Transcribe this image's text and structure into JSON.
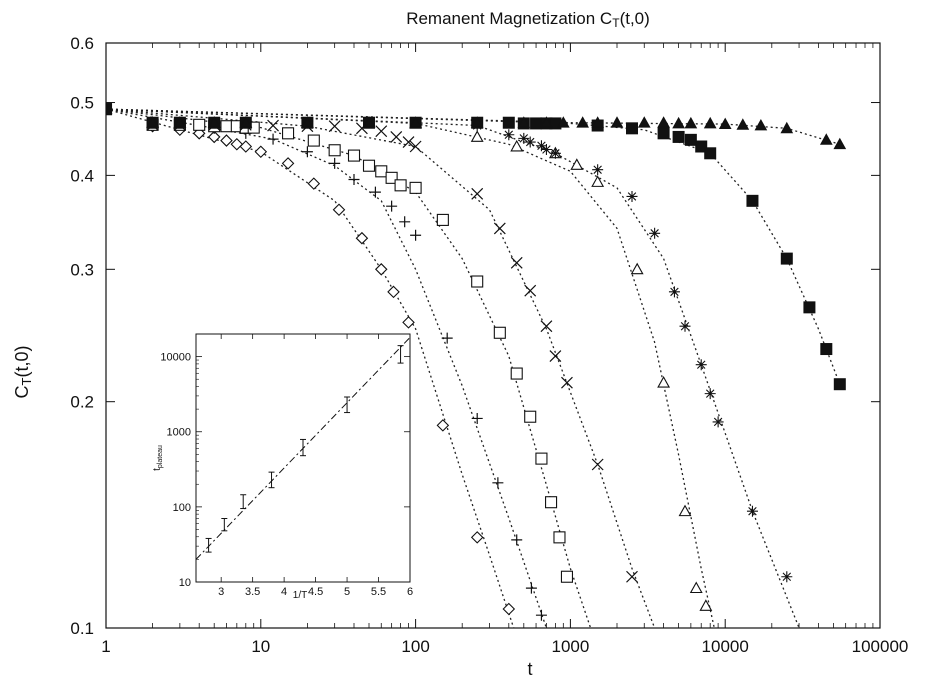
{
  "chart_data": [
    {
      "type": "scatter",
      "title": "Remanent Magnetization C",
      "title_sub": "T",
      "title_suffix": "(t,0)",
      "xlabel": "t",
      "ylabel": "C",
      "ylabel_sub": "T",
      "ylabel_suffix": "(t,0)",
      "xscale": "log",
      "yscale": "log",
      "xlim": [
        1,
        100000
      ],
      "ylim": [
        0.1,
        0.6
      ],
      "xticks": [
        1,
        10,
        100,
        1000,
        10000,
        100000
      ],
      "xtick_labels": [
        "1",
        "10",
        "100",
        "1000",
        "10000",
        "100000"
      ],
      "yticks": [
        0.1,
        0.2,
        0.3,
        0.4,
        0.5,
        0.6
      ],
      "ytick_labels": [
        "0.1",
        "0.2",
        "0.3",
        "0.4",
        "0.5",
        "0.6"
      ],
      "grid": false,
      "legend": "none",
      "line_style": "dotted",
      "series": [
        {
          "marker": "diamond",
          "x": [
            1,
            2,
            3,
            4,
            5,
            6,
            7,
            8,
            10,
            15,
            22,
            32,
            45,
            60,
            72,
            90,
            150,
            250,
            400
          ],
          "y": [
            0.49,
            0.465,
            0.46,
            0.455,
            0.45,
            0.445,
            0.44,
            0.437,
            0.43,
            0.415,
            0.39,
            0.36,
            0.33,
            0.3,
            0.28,
            0.255,
            0.186,
            0.132,
            0.106
          ],
          "curve_x": [
            1,
            3,
            10,
            30,
            60,
            100,
            200,
            300,
            430
          ],
          "curve_y": [
            0.49,
            0.46,
            0.43,
            0.37,
            0.3,
            0.25,
            0.16,
            0.125,
            0.1
          ]
        },
        {
          "marker": "plus",
          "x": [
            1,
            2,
            3,
            5,
            8,
            12,
            20,
            30,
            40,
            55,
            70,
            85,
            100,
            160,
            250,
            340,
            450,
            560,
            650
          ],
          "y": [
            0.49,
            0.47,
            0.47,
            0.462,
            0.455,
            0.447,
            0.43,
            0.415,
            0.395,
            0.38,
            0.364,
            0.347,
            0.333,
            0.243,
            0.19,
            0.156,
            0.131,
            0.113,
            0.104
          ],
          "curve_x": [
            1,
            5,
            12,
            30,
            60,
            100,
            200,
            400,
            700
          ],
          "curve_y": [
            0.49,
            0.462,
            0.447,
            0.412,
            0.37,
            0.3,
            0.21,
            0.14,
            0.1
          ]
        },
        {
          "marker": "square",
          "x": [
            1,
            2,
            3,
            4,
            5,
            6,
            7,
            8,
            9,
            15,
            22,
            30,
            40,
            50,
            60,
            70,
            80,
            100,
            150,
            250,
            350,
            450,
            550,
            650,
            750,
            850,
            950
          ],
          "y": [
            0.49,
            0.467,
            0.467,
            0.467,
            0.465,
            0.465,
            0.465,
            0.463,
            0.463,
            0.455,
            0.445,
            0.432,
            0.425,
            0.412,
            0.405,
            0.397,
            0.388,
            0.385,
            0.349,
            0.289,
            0.247,
            0.218,
            0.191,
            0.168,
            0.147,
            0.132,
            0.117
          ],
          "curve_x": [
            1,
            10,
            40,
            100,
            200,
            400,
            700,
            1000,
            1350
          ],
          "curve_y": [
            0.49,
            0.463,
            0.425,
            0.38,
            0.31,
            0.23,
            0.155,
            0.12,
            0.1
          ]
        },
        {
          "marker": "cross",
          "x": [
            1,
            2,
            3,
            5,
            8,
            12,
            20,
            30,
            45,
            60,
            75,
            90,
            100,
            250,
            350,
            450,
            550,
            700,
            800,
            950,
            1500,
            2500
          ],
          "y": [
            0.49,
            0.467,
            0.467,
            0.467,
            0.467,
            0.466,
            0.465,
            0.465,
            0.462,
            0.458,
            0.45,
            0.443,
            0.437,
            0.378,
            0.34,
            0.306,
            0.281,
            0.252,
            0.23,
            0.212,
            0.165,
            0.117
          ],
          "curve_x": [
            1,
            20,
            100,
            300,
            700,
            1500,
            2500,
            3500
          ],
          "curve_y": [
            0.49,
            0.465,
            0.437,
            0.36,
            0.25,
            0.165,
            0.12,
            0.1
          ]
        },
        {
          "marker": "triangle-open",
          "x": [
            1,
            2,
            3,
            5,
            8,
            20,
            50,
            100,
            250,
            450,
            800,
            1100,
            1500,
            2700,
            4000,
            5500,
            6500,
            7500
          ],
          "y": [
            0.49,
            0.47,
            0.47,
            0.47,
            0.47,
            0.47,
            0.47,
            0.469,
            0.45,
            0.437,
            0.428,
            0.413,
            0.392,
            0.3,
            0.212,
            0.143,
            0.113,
            0.107
          ],
          "curve_x": [
            1,
            100,
            400,
            1000,
            2000,
            3500,
            5000,
            7000,
            8500
          ],
          "curve_y": [
            0.49,
            0.469,
            0.44,
            0.405,
            0.34,
            0.24,
            0.17,
            0.12,
            0.1
          ]
        },
        {
          "marker": "star",
          "x": [
            1,
            2,
            3,
            5,
            8,
            20,
            50,
            100,
            250,
            400,
            500,
            550,
            650,
            700,
            800,
            1500,
            2500,
            3500,
            4700,
            5500,
            7000,
            8000,
            9000,
            15000,
            25000
          ],
          "y": [
            0.49,
            0.47,
            0.47,
            0.47,
            0.47,
            0.47,
            0.47,
            0.47,
            0.466,
            0.453,
            0.448,
            0.443,
            0.438,
            0.433,
            0.428,
            0.407,
            0.375,
            0.335,
            0.28,
            0.252,
            0.224,
            0.205,
            0.188,
            0.143,
            0.117
          ],
          "curve_x": [
            1,
            250,
            800,
            2000,
            4000,
            7000,
            15000,
            30000
          ],
          "curve_y": [
            0.49,
            0.466,
            0.428,
            0.385,
            0.31,
            0.224,
            0.143,
            0.1
          ]
        },
        {
          "marker": "square-filled",
          "x": [
            1,
            2,
            3,
            5,
            8,
            20,
            50,
            100,
            250,
            400,
            500,
            600,
            700,
            800,
            1500,
            2500,
            4000,
            5000,
            6000,
            7000,
            8000,
            15000,
            25000,
            35000,
            45000,
            55000
          ],
          "y": [
            0.49,
            0.47,
            0.47,
            0.47,
            0.47,
            0.47,
            0.47,
            0.47,
            0.47,
            0.47,
            0.469,
            0.469,
            0.469,
            0.469,
            0.466,
            0.462,
            0.455,
            0.45,
            0.446,
            0.437,
            0.428,
            0.37,
            0.31,
            0.267,
            0.235,
            0.211
          ],
          "curve_x": [
            1,
            1000,
            3000,
            8000,
            15000,
            25000,
            40000,
            55000
          ],
          "curve_y": [
            0.49,
            0.469,
            0.46,
            0.428,
            0.37,
            0.31,
            0.25,
            0.211
          ]
        },
        {
          "marker": "triangle-filled",
          "x": [
            1,
            2,
            3,
            5,
            8,
            20,
            50,
            100,
            250,
            500,
            700,
            900,
            1200,
            1500,
            2000,
            3000,
            4000,
            5000,
            6000,
            8000,
            10000,
            13000,
            17000,
            25000,
            45000,
            55000
          ],
          "y": [
            0.49,
            0.47,
            0.47,
            0.47,
            0.47,
            0.47,
            0.47,
            0.47,
            0.47,
            0.47,
            0.47,
            0.47,
            0.47,
            0.47,
            0.47,
            0.47,
            0.47,
            0.469,
            0.469,
            0.469,
            0.468,
            0.467,
            0.466,
            0.462,
            0.446,
            0.44
          ],
          "curve_x": [
            1,
            1000,
            10000,
            25000,
            55000
          ],
          "curve_y": [
            0.49,
            0.47,
            0.468,
            0.462,
            0.44
          ]
        }
      ]
    },
    {
      "type": "scatter",
      "inset": true,
      "xlabel": "1/T",
      "ylabel": "t",
      "ylabel_sub": "plateau",
      "xscale": "linear",
      "yscale": "log",
      "xlim": [
        2.6,
        6
      ],
      "ylim": [
        10,
        20000
      ],
      "xticks": [
        3,
        3.5,
        4,
        4.5,
        5,
        5.5,
        6
      ],
      "xtick_labels": [
        "3",
        "3.5",
        "4",
        "4.5",
        "5",
        "5.5",
        "6"
      ],
      "yticks": [
        10,
        100,
        1000,
        10000
      ],
      "ytick_labels": [
        "10",
        "100",
        "1000",
        "10000"
      ],
      "grid": false,
      "legend": "none",
      "fit_line": {
        "x": [
          2.6,
          6
        ],
        "y": [
          20,
          18000
        ]
      },
      "series": [
        {
          "marker": "errorbar",
          "x": [
            2.8,
            3.05,
            3.35,
            3.8,
            4.3,
            5.0,
            5.85
          ],
          "y": [
            31,
            58,
            118,
            230,
            620,
            2300,
            10800
          ],
          "y_low": [
            25,
            48,
            95,
            180,
            480,
            1800,
            8200
          ],
          "y_high": [
            38,
            70,
            145,
            290,
            790,
            2900,
            14000
          ]
        }
      ]
    }
  ]
}
